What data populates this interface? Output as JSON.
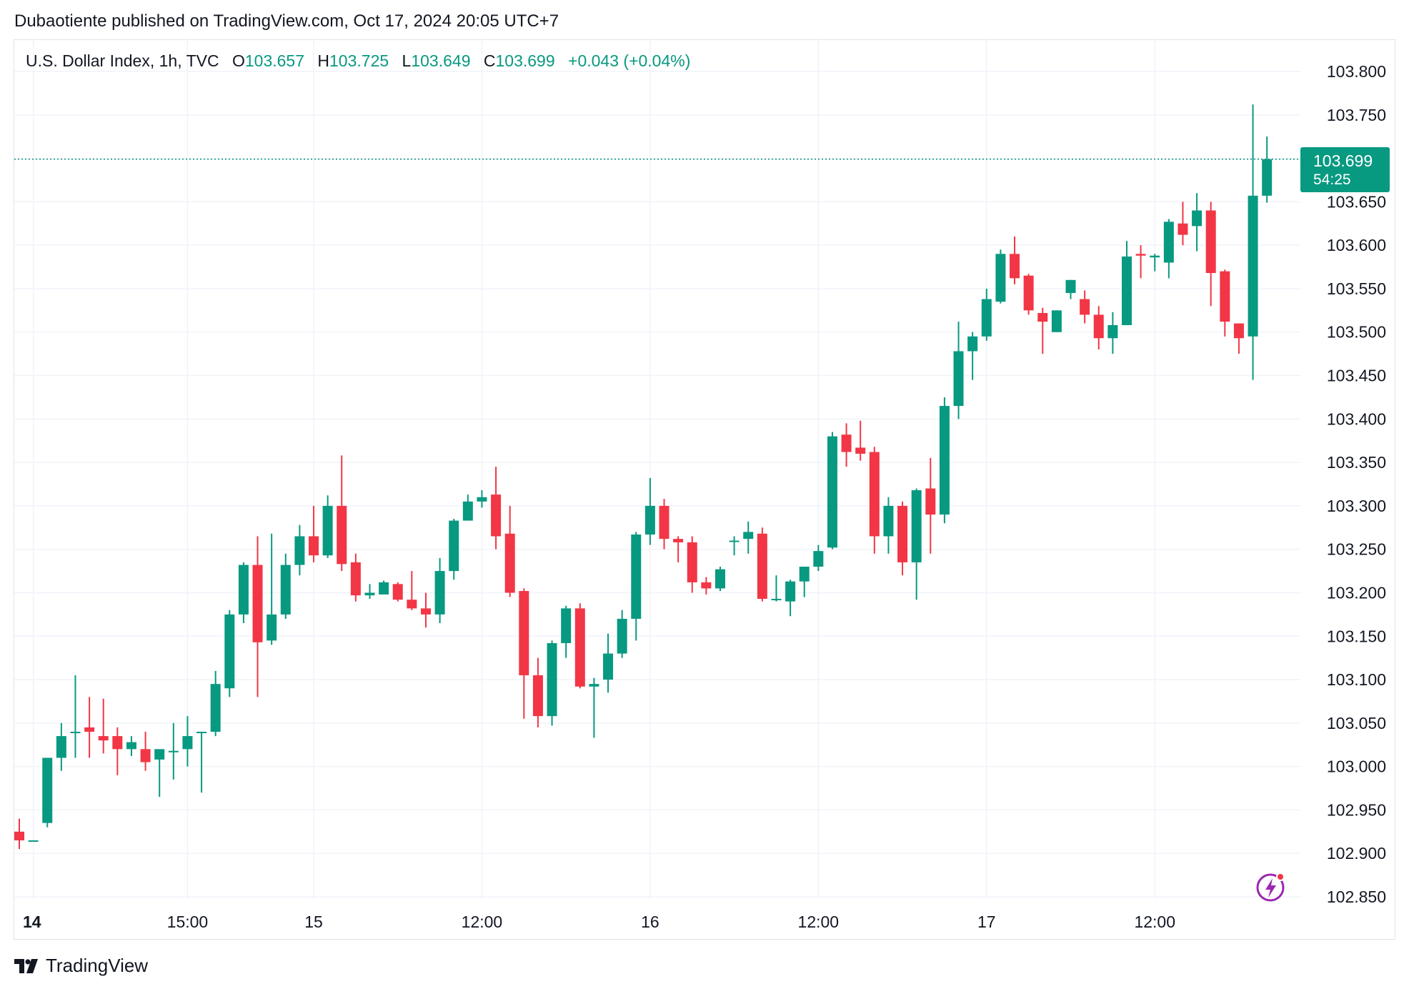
{
  "header": {
    "published": "Dubaotiente published on TradingView.com, Oct 17, 2024 20:05 UTC+7"
  },
  "legend": {
    "symbol": "U.S. Dollar Index, 1h, TVC",
    "o_label": "O",
    "o_value": "103.657",
    "h_label": "H",
    "h_value": "103.725",
    "l_label": "L",
    "l_value": "103.649",
    "c_label": "C",
    "c_value": "103.699",
    "change": "+0.043 (+0.04%)"
  },
  "last_price": {
    "price": "103.699",
    "countdown": "54:25"
  },
  "brand": {
    "name": "TradingView",
    "icon": "tradingview-logo-icon"
  },
  "colors": {
    "up": "#089981",
    "down": "#f23645",
    "grid": "#f0f3fa",
    "text": "#131722",
    "accent_bolt": "#9c27b0",
    "bolt_dot": "#f23645"
  },
  "chart_data": {
    "type": "candlestick",
    "title": "U.S. Dollar Index, 1h, TVC",
    "ylim": [
      102.85,
      103.82
    ],
    "y_ticks": [
      "103.800",
      "103.750",
      "103.700",
      "103.650",
      "103.600",
      "103.550",
      "103.500",
      "103.450",
      "103.400",
      "103.350",
      "103.300",
      "103.250",
      "103.200",
      "103.150",
      "103.100",
      "103.050",
      "103.000",
      "102.950",
      "102.900",
      "102.850"
    ],
    "x_ticks": [
      {
        "label": "14",
        "bar": 1,
        "bold": true
      },
      {
        "label": "15:00",
        "bar": 12
      },
      {
        "label": "15",
        "bar": 21
      },
      {
        "label": "12:00",
        "bar": 33
      },
      {
        "label": "16",
        "bar": 45
      },
      {
        "label": "12:00",
        "bar": 57
      },
      {
        "label": "17",
        "bar": 69
      },
      {
        "label": "12:00",
        "bar": 81
      }
    ],
    "last_price": 103.699,
    "candles": [
      [
        102.925,
        102.94,
        102.905,
        102.915
      ],
      [
        102.915,
        102.915,
        102.915,
        102.915
      ],
      [
        102.935,
        103.01,
        102.93,
        103.01
      ],
      [
        103.01,
        103.05,
        102.995,
        103.035
      ],
      [
        103.04,
        103.105,
        103.01,
        103.04
      ],
      [
        103.045,
        103.08,
        103.01,
        103.04
      ],
      [
        103.035,
        103.078,
        103.015,
        103.03
      ],
      [
        103.035,
        103.045,
        102.99,
        103.02
      ],
      [
        103.02,
        103.035,
        103.012,
        103.028
      ],
      [
        103.02,
        103.04,
        102.995,
        103.005
      ],
      [
        103.008,
        103.018,
        102.965,
        103.02
      ],
      [
        103.018,
        103.05,
        102.985,
        103.018
      ],
      [
        103.02,
        103.058,
        103.0,
        103.035
      ],
      [
        103.04,
        103.04,
        102.97,
        103.04
      ],
      [
        103.04,
        103.11,
        103.035,
        103.095
      ],
      [
        103.09,
        103.18,
        103.08,
        103.175
      ],
      [
        103.175,
        103.235,
        103.165,
        103.232
      ],
      [
        103.232,
        103.265,
        103.08,
        103.143
      ],
      [
        103.145,
        103.268,
        103.14,
        103.175
      ],
      [
        103.175,
        103.245,
        103.17,
        103.232
      ],
      [
        103.232,
        103.278,
        103.22,
        103.265
      ],
      [
        103.265,
        103.3,
        103.235,
        103.243
      ],
      [
        103.243,
        103.312,
        103.24,
        103.3
      ],
      [
        103.3,
        103.358,
        103.225,
        103.233
      ],
      [
        103.235,
        103.245,
        103.19,
        103.197
      ],
      [
        103.197,
        103.21,
        103.193,
        103.2
      ],
      [
        103.198,
        103.214,
        103.198,
        103.212
      ],
      [
        103.21,
        103.212,
        103.19,
        103.192
      ],
      [
        103.192,
        103.225,
        103.18,
        103.182
      ],
      [
        103.182,
        103.2,
        103.16,
        103.175
      ],
      [
        103.175,
        103.24,
        103.165,
        103.225
      ],
      [
        103.225,
        103.285,
        103.215,
        103.283
      ],
      [
        103.283,
        103.313,
        103.29,
        103.305
      ],
      [
        103.305,
        103.318,
        103.298,
        103.31
      ],
      [
        103.313,
        103.345,
        103.25,
        103.265
      ],
      [
        103.268,
        103.3,
        103.195,
        103.2
      ],
      [
        103.202,
        103.205,
        103.055,
        103.105
      ],
      [
        103.105,
        103.125,
        103.045,
        103.058
      ],
      [
        103.058,
        103.145,
        103.047,
        103.142
      ],
      [
        103.142,
        103.185,
        103.125,
        103.182
      ],
      [
        103.182,
        103.188,
        103.09,
        103.092
      ],
      [
        103.092,
        103.102,
        103.033,
        103.095
      ],
      [
        103.1,
        103.153,
        103.085,
        103.13
      ],
      [
        103.13,
        103.18,
        103.125,
        103.17
      ],
      [
        103.17,
        103.27,
        103.145,
        103.267
      ],
      [
        103.267,
        103.332,
        103.255,
        103.3
      ],
      [
        103.3,
        103.308,
        103.25,
        103.262
      ],
      [
        103.262,
        103.265,
        103.235,
        103.258
      ],
      [
        103.258,
        103.265,
        103.2,
        103.212
      ],
      [
        103.212,
        103.218,
        103.198,
        103.205
      ],
      [
        103.205,
        103.23,
        103.202,
        103.227
      ],
      [
        103.26,
        103.265,
        103.243,
        103.26
      ],
      [
        103.262,
        103.282,
        103.245,
        103.27
      ],
      [
        103.268,
        103.275,
        103.19,
        103.193
      ],
      [
        103.193,
        103.22,
        103.19,
        103.193
      ],
      [
        103.19,
        103.215,
        103.173,
        103.213
      ],
      [
        103.213,
        103.23,
        103.195,
        103.23
      ],
      [
        103.23,
        103.255,
        103.225,
        103.248
      ],
      [
        103.252,
        103.385,
        103.25,
        103.38
      ],
      [
        103.382,
        103.395,
        103.345,
        103.362
      ],
      [
        103.367,
        103.398,
        103.352,
        103.36
      ],
      [
        103.362,
        103.368,
        103.245,
        103.265
      ],
      [
        103.265,
        103.31,
        103.245,
        103.3
      ],
      [
        103.3,
        103.305,
        103.22,
        103.235
      ],
      [
        103.235,
        103.32,
        103.192,
        103.318
      ],
      [
        103.32,
        103.355,
        103.245,
        103.29
      ],
      [
        103.29,
        103.425,
        103.28,
        103.415
      ],
      [
        103.415,
        103.512,
        103.4,
        103.478
      ],
      [
        103.478,
        103.5,
        103.445,
        103.495
      ],
      [
        103.495,
        103.55,
        103.49,
        103.538
      ],
      [
        103.535,
        103.595,
        103.533,
        103.59
      ],
      [
        103.59,
        103.61,
        103.555,
        103.562
      ],
      [
        103.565,
        103.567,
        103.52,
        103.525
      ],
      [
        103.522,
        103.528,
        103.475,
        103.512
      ],
      [
        103.5,
        103.525,
        103.5,
        103.525
      ],
      [
        103.545,
        103.56,
        103.538,
        103.56
      ],
      [
        103.538,
        103.548,
        103.51,
        103.52
      ],
      [
        103.52,
        103.53,
        103.48,
        103.493
      ],
      [
        103.493,
        103.523,
        103.475,
        103.508
      ],
      [
        103.508,
        103.605,
        103.508,
        103.587
      ],
      [
        103.59,
        103.6,
        103.562,
        103.588
      ],
      [
        103.586,
        103.59,
        103.57,
        103.588
      ],
      [
        103.58,
        103.63,
        103.562,
        103.627
      ],
      [
        103.625,
        103.65,
        103.6,
        103.612
      ],
      [
        103.622,
        103.66,
        103.593,
        103.64
      ],
      [
        103.64,
        103.65,
        103.53,
        103.568
      ],
      [
        103.57,
        103.572,
        103.495,
        103.512
      ],
      [
        103.51,
        103.51,
        103.475,
        103.493
      ],
      [
        103.495,
        103.762,
        103.445,
        103.657
      ],
      [
        103.657,
        103.725,
        103.649,
        103.699
      ]
    ]
  }
}
